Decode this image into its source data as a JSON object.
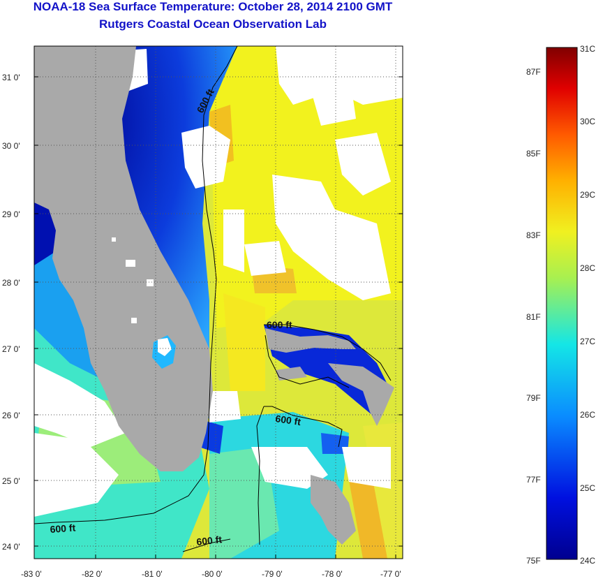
{
  "header": {
    "title": "NOAA-18 Sea Surface Temperature:  October 28, 2014 2100 GMT",
    "subtitle": "Rutgers Coastal Ocean Observation Lab"
  },
  "map": {
    "lat_ticks": [
      "31 0'",
      "30 0'",
      "29 0'",
      "28 0'",
      "27 0'",
      "26 0'",
      "25 0'",
      "24 0'"
    ],
    "lon_ticks": [
      "-83 0'",
      "-82 0'",
      "-81 0'",
      "-80 0'",
      "-79 0'",
      "-78 0'",
      "-77 0'"
    ],
    "contour_labels": [
      "600 ft",
      "600 ft",
      "600 ft",
      "600 ft",
      "600 ft"
    ]
  },
  "colorbar": {
    "fahrenheit_labels": [
      "87F",
      "85F",
      "83F",
      "81F",
      "79F",
      "77F",
      "75F"
    ],
    "celsius_labels": [
      "31C",
      "30C",
      "29C",
      "28C",
      "27C",
      "26C",
      "25C",
      "24C"
    ],
    "colors": {
      "deep_blue": "#00008f",
      "blue": "#0040ff",
      "cyan": "#14e6e6",
      "yellow": "#f0f020",
      "orange": "#ff8c00",
      "red": "#e00000",
      "dark_red": "#800000",
      "land": "#a9a9a9",
      "cloud": "#ffffff"
    }
  }
}
